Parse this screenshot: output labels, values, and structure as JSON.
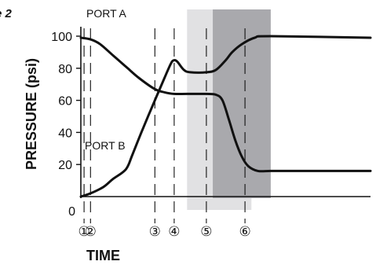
{
  "corner_label": "e 2",
  "chart_data": {
    "type": "line",
    "xlabel": "TIME",
    "ylabel": "PRESSURE (psi)",
    "ylim": [
      0,
      100
    ],
    "yticks": [
      0,
      20,
      40,
      60,
      80,
      100
    ],
    "grid": false,
    "x_unit": "time (arbitrary)",
    "markers": [
      {
        "label": "①",
        "t": 0.5
      },
      {
        "label": "②",
        "t": 1.5
      },
      {
        "label": "③",
        "t": 11.5
      },
      {
        "label": "④",
        "t": 14.5
      },
      {
        "label": "⑤",
        "t": 19.5
      },
      {
        "label": "⑥",
        "t": 25.5
      }
    ],
    "shaded_regions": [
      {
        "from": 16.5,
        "to": 26.5,
        "color": "#e1e1e3"
      },
      {
        "from": 20.5,
        "to": 29.5,
        "color": "#a9a9ad"
      }
    ],
    "series": [
      {
        "name": "PORT A",
        "color": "#111111",
        "points": [
          [
            0,
            99
          ],
          [
            1.5,
            98
          ],
          [
            3,
            95
          ],
          [
            5,
            88
          ],
          [
            7,
            81
          ],
          [
            9,
            74
          ],
          [
            11.5,
            67
          ],
          [
            13,
            65
          ],
          [
            14.5,
            64
          ],
          [
            16.5,
            64
          ],
          [
            19.5,
            64
          ],
          [
            21,
            63.5
          ],
          [
            22,
            60
          ],
          [
            23,
            48
          ],
          [
            24,
            35
          ],
          [
            25,
            25
          ],
          [
            26,
            19
          ],
          [
            27.5,
            16
          ],
          [
            29.5,
            16
          ],
          [
            33,
            16
          ],
          [
            45,
            16
          ]
        ]
      },
      {
        "name": "PORT B",
        "color": "#111111",
        "points": [
          [
            0,
            0
          ],
          [
            1.5,
            2
          ],
          [
            3.5,
            6
          ],
          [
            5,
            11
          ],
          [
            7,
            17
          ],
          [
            8,
            26
          ],
          [
            9.5,
            41
          ],
          [
            11.5,
            60
          ],
          [
            13,
            74
          ],
          [
            14,
            83
          ],
          [
            14.5,
            85
          ],
          [
            15,
            84
          ],
          [
            16,
            79
          ],
          [
            17,
            77.5
          ],
          [
            19.5,
            77.5
          ],
          [
            21,
            79
          ],
          [
            22.5,
            85
          ],
          [
            23.5,
            90
          ],
          [
            25,
            95
          ],
          [
            27,
            99
          ],
          [
            29.5,
            100
          ],
          [
            45,
            99
          ]
        ]
      }
    ]
  }
}
